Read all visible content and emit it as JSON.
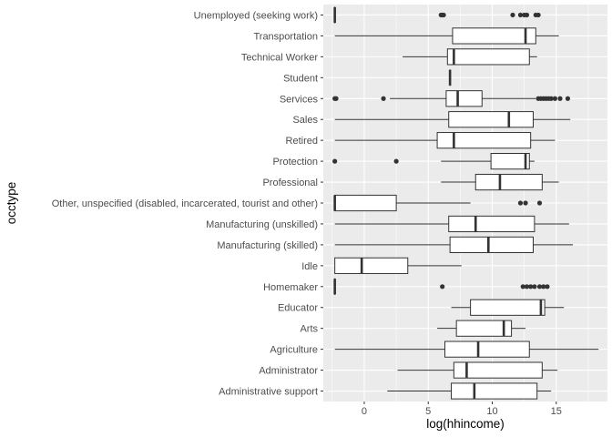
{
  "chart_data": {
    "type": "boxplot",
    "orientation": "horizontal",
    "xlabel": "log(hhincome)",
    "ylabel": "occtype",
    "xlim": [
      -3.2,
      19.0
    ],
    "xticks": [
      0,
      5,
      10,
      15
    ],
    "grid": true,
    "background": "#ebebeb",
    "colors": {
      "panel": "#ebebeb",
      "grid_major": "#ffffff",
      "box_fill": "#ffffff",
      "box_line": "#333333",
      "outlier": "#333333"
    },
    "categories": [
      "Unemployed (seeking work)",
      "Transportation",
      "Technical Worker",
      "Student",
      "Services",
      "Sales",
      "Retired",
      "Protection",
      "Professional",
      "Other, unspecified (disabled, incarcerated, tourist and other)",
      "Manufacturing (unskilled)",
      "Manufacturing (skilled)",
      "Idle",
      "Homemaker",
      "Educator",
      "Arts",
      "Agriculture",
      "Administrator",
      "Administrative support"
    ],
    "boxes": [
      {
        "min": -2.3,
        "q1": -2.3,
        "median": -2.3,
        "q3": -2.3,
        "max": -2.3,
        "outliers": [
          6.0,
          6.1,
          6.2,
          11.6,
          12.2,
          12.5,
          12.7,
          13.4,
          13.6
        ]
      },
      {
        "min": -2.3,
        "q1": 6.9,
        "median": 12.6,
        "q3": 13.4,
        "max": 15.2,
        "outliers": []
      },
      {
        "min": 3.0,
        "q1": 6.5,
        "median": 7.0,
        "q3": 12.9,
        "max": 13.5,
        "outliers": []
      },
      {
        "min": 6.7,
        "q1": 6.7,
        "median": 6.7,
        "q3": 6.7,
        "max": 6.7,
        "outliers": []
      },
      {
        "min": 2.0,
        "q1": 6.4,
        "median": 7.3,
        "q3": 9.2,
        "max": 13.4,
        "outliers": [
          -2.3,
          -2.2,
          1.5,
          13.6,
          13.8,
          14.0,
          14.2,
          14.4,
          14.6,
          14.9,
          15.3,
          15.9
        ]
      },
      {
        "min": -2.3,
        "q1": 6.6,
        "median": 11.3,
        "q3": 13.2,
        "max": 16.1,
        "outliers": []
      },
      {
        "min": -2.3,
        "q1": 5.7,
        "median": 7.0,
        "q3": 13.0,
        "max": 14.9,
        "outliers": []
      },
      {
        "min": 6.0,
        "q1": 9.9,
        "median": 12.6,
        "q3": 12.9,
        "max": 13.3,
        "outliers": [
          -2.3,
          2.5
        ]
      },
      {
        "min": 6.0,
        "q1": 8.7,
        "median": 10.6,
        "q3": 13.9,
        "max": 15.2,
        "outliers": []
      },
      {
        "min": -2.3,
        "q1": -2.3,
        "median": -2.3,
        "q3": 2.5,
        "max": 8.3,
        "outliers": [
          12.2,
          12.6,
          13.7
        ]
      },
      {
        "min": -2.3,
        "q1": 6.6,
        "median": 8.7,
        "q3": 13.3,
        "max": 16.0,
        "outliers": []
      },
      {
        "min": -2.3,
        "q1": 6.7,
        "median": 9.7,
        "q3": 13.2,
        "max": 16.3,
        "outliers": []
      },
      {
        "min": -2.3,
        "q1": -2.3,
        "median": -0.2,
        "q3": 3.4,
        "max": 7.6,
        "outliers": []
      },
      {
        "min": -2.3,
        "q1": -2.3,
        "median": -2.3,
        "q3": -2.3,
        "max": -2.3,
        "outliers": [
          6.1,
          12.4,
          12.7,
          13.0,
          13.3,
          13.7,
          14.0,
          14.3
        ]
      },
      {
        "min": 6.8,
        "q1": 8.3,
        "median": 13.8,
        "q3": 14.1,
        "max": 15.6,
        "outliers": []
      },
      {
        "min": 5.7,
        "q1": 7.2,
        "median": 10.9,
        "q3": 11.5,
        "max": 12.6,
        "outliers": []
      },
      {
        "min": -2.3,
        "q1": 6.3,
        "median": 8.9,
        "q3": 12.9,
        "max": 18.3,
        "outliers": []
      },
      {
        "min": 2.6,
        "q1": 7.0,
        "median": 8.0,
        "q3": 13.9,
        "max": 15.1,
        "outliers": []
      },
      {
        "min": 1.8,
        "q1": 6.8,
        "median": 8.6,
        "q3": 13.5,
        "max": 14.6,
        "outliers": []
      }
    ]
  }
}
